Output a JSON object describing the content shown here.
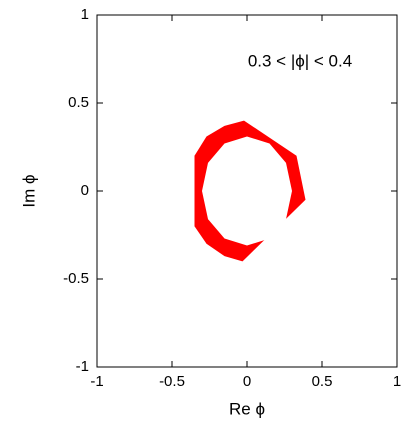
{
  "chart_data": {
    "type": "area",
    "xlabel": "Re ϕ",
    "ylabel": "Im ϕ",
    "annotation": "0.3 < |ϕ| < 0.4",
    "xlim": [
      -1,
      1
    ],
    "ylim": [
      -1,
      1
    ],
    "xticks": [
      -1,
      -0.5,
      0,
      0.5,
      1
    ],
    "yticks": [
      -1,
      -0.5,
      0,
      0.5,
      1
    ],
    "series": [
      {
        "color": "#ff0000",
        "x": [
          -0.02,
          0.33,
          0.39,
          -0.03,
          -0.15,
          -0.27,
          -0.35,
          -0.35,
          -0.27,
          -0.15
        ],
        "y": [
          0.4,
          0.2,
          -0.05,
          -0.4,
          -0.37,
          -0.3,
          -0.2,
          0.2,
          0.31,
          0.37
        ]
      },
      {
        "color": "#ffffff",
        "x": [
          0,
          0.15,
          0.26,
          0.3,
          0.26,
          0.15,
          0,
          -0.15,
          -0.26,
          -0.3,
          -0.26,
          -0.15
        ],
        "y": [
          0.31,
          0.27,
          0.16,
          0,
          -0.16,
          -0.27,
          -0.31,
          -0.27,
          -0.16,
          0,
          0.16,
          0.27
        ]
      }
    ]
  }
}
